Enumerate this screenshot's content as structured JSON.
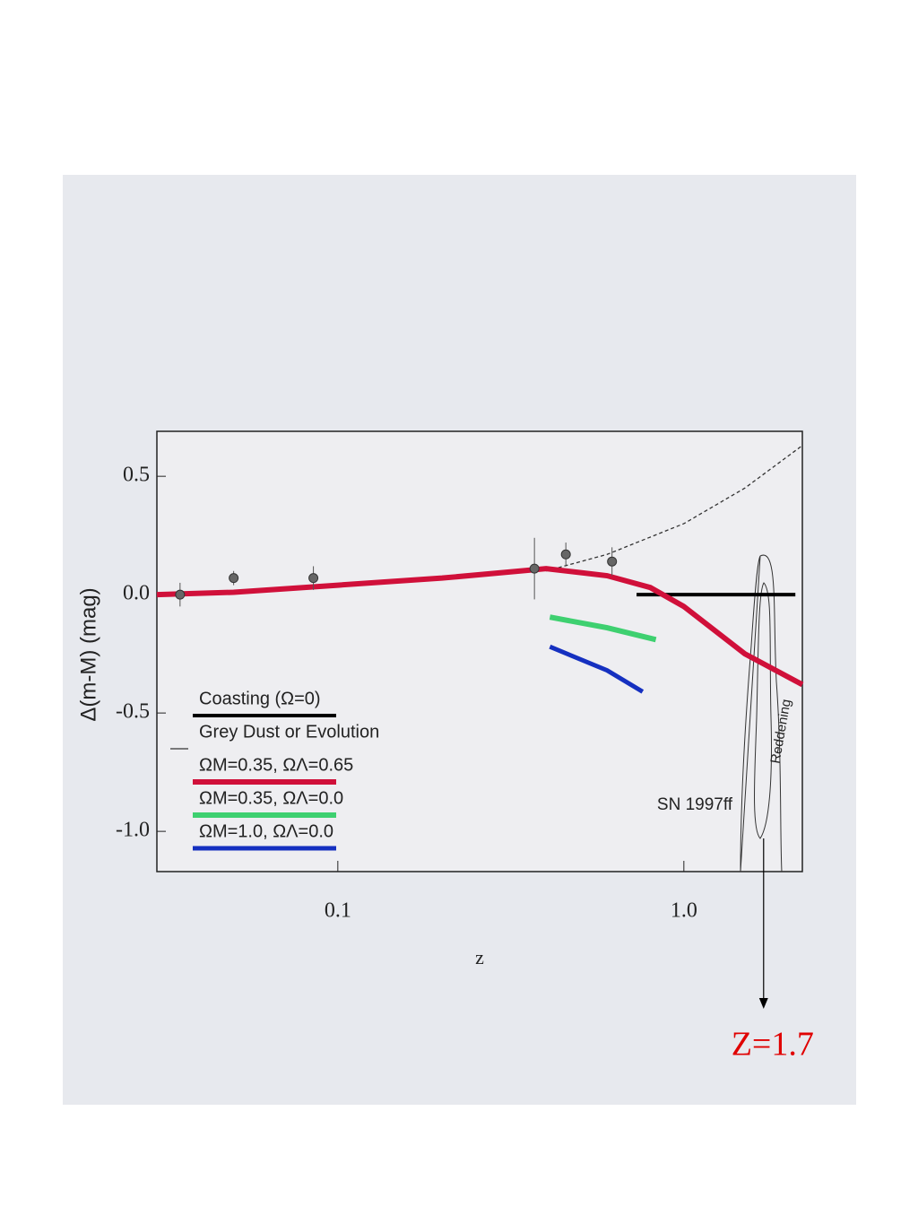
{
  "chart_data": {
    "type": "line",
    "x_label": "z",
    "y_label": "Δ(m-M) (mag)",
    "xscale": "log",
    "xlim": [
      0.03,
      2.2
    ],
    "ylim": [
      -1.17,
      0.69
    ],
    "xticks": [
      0.1,
      {
        "value": 1.0,
        "label": "1.0"
      }
    ],
    "yticks": [
      0.5,
      {
        "value": 0.0,
        "label": "0.0"
      },
      -0.5,
      {
        "value": -1.0,
        "label": "-1.0"
      }
    ],
    "legend": "lower left",
    "series": [
      {
        "name": "Coasting (Ω=0)",
        "color": "#000000",
        "x": [
          0.73,
          2.1
        ],
        "values": [
          0.0,
          0.0
        ]
      },
      {
        "name": "Grey Dust or Evolution",
        "color": "#333333",
        "x": [
          0.4,
          0.6,
          1.0,
          1.5,
          2.2
        ],
        "values": [
          0.1,
          0.17,
          0.3,
          0.45,
          0.63
        ]
      },
      {
        "name": "ΩM=0.35, ΩΛ=0.65",
        "color": "#d0103a",
        "x": [
          0.03,
          0.05,
          0.1,
          0.2,
          0.4,
          0.6,
          0.8,
          1.0,
          1.5,
          2.2
        ],
        "values": [
          0.0,
          0.01,
          0.04,
          0.07,
          0.11,
          0.08,
          0.03,
          -0.05,
          -0.25,
          -0.38
        ]
      },
      {
        "name": "ΩM=0.35, ΩΛ=0.0",
        "color": "#3ed070",
        "x": [
          0.41,
          0.6,
          0.83
        ],
        "values": [
          -0.095,
          -0.14,
          -0.19
        ]
      },
      {
        "name": "ΩM=1.0, ΩΛ=0.0",
        "color": "#1530c0",
        "x": [
          0.41,
          0.6,
          0.76
        ],
        "values": [
          -0.22,
          -0.32,
          -0.41
        ]
      }
    ],
    "points": {
      "x": [
        0.035,
        0.05,
        0.085,
        0.37,
        0.456,
        0.62
      ],
      "values": [
        0.0,
        0.07,
        0.07,
        0.11,
        0.17,
        0.14
      ],
      "errors": [
        0.05,
        0.03,
        0.05,
        0.13,
        0.05,
        0.06
      ]
    },
    "annotations": [
      {
        "text": "SN 1997ff"
      },
      {
        "text": "Reddening"
      },
      {
        "text": "Z=1.7",
        "x": 1.7
      }
    ]
  }
}
